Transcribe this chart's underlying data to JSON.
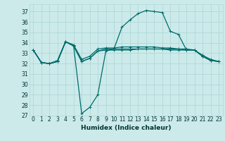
{
  "xlabel": "Humidex (Indice chaleur)",
  "bg_color": "#cceaea",
  "line_color": "#006b6b",
  "grid_color": "#b0d8d8",
  "xlim": [
    -0.5,
    23.5
  ],
  "ylim": [
    27,
    37.7
  ],
  "yticks": [
    27,
    28,
    29,
    30,
    31,
    32,
    33,
    34,
    35,
    36,
    37
  ],
  "xticks": [
    0,
    1,
    2,
    3,
    4,
    5,
    6,
    7,
    8,
    9,
    10,
    11,
    12,
    13,
    14,
    15,
    16,
    17,
    18,
    19,
    20,
    21,
    22,
    23
  ],
  "series": [
    [
      33.3,
      32.1,
      32.0,
      32.2,
      34.1,
      33.7,
      32.2,
      32.5,
      33.2,
      33.3,
      33.3,
      33.3,
      33.3,
      33.4,
      33.4,
      33.4,
      33.4,
      33.3,
      33.3,
      33.3,
      33.3,
      32.7,
      32.3,
      32.2
    ],
    [
      33.3,
      32.1,
      32.0,
      32.3,
      34.1,
      33.8,
      32.4,
      32.7,
      33.4,
      33.5,
      33.5,
      33.6,
      33.6,
      33.6,
      33.6,
      33.6,
      33.5,
      33.5,
      33.4,
      33.4,
      33.3,
      32.8,
      32.4,
      32.2
    ],
    [
      33.3,
      32.1,
      32.0,
      32.2,
      34.1,
      33.7,
      27.2,
      27.8,
      29.0,
      33.2,
      33.4,
      35.5,
      36.2,
      36.8,
      37.1,
      37.0,
      36.9,
      35.1,
      34.8,
      33.3,
      33.3,
      32.7,
      32.3,
      32.2
    ],
    [
      33.3,
      32.1,
      32.0,
      32.2,
      34.1,
      33.7,
      32.2,
      32.5,
      33.2,
      33.4,
      33.4,
      33.4,
      33.4,
      33.4,
      33.4,
      33.4,
      33.4,
      33.4,
      33.4,
      33.3,
      33.3,
      32.7,
      32.3,
      32.2
    ]
  ],
  "marker_size": 3,
  "linewidth": 0.9,
  "xlabel_fontsize": 6.5,
  "tick_fontsize": 5.5
}
